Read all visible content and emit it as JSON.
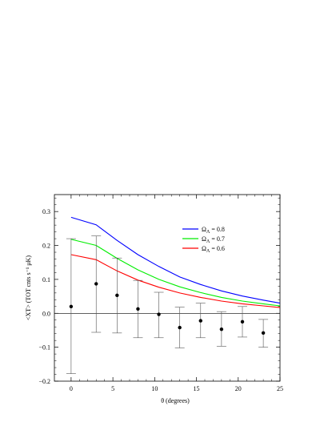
{
  "chart_data": {
    "type": "line",
    "xlabel": "θ (degrees)",
    "ylabel": "<XT> (TOT cnts s⁻¹ μK)",
    "xlim": [
      -2,
      25
    ],
    "ylim": [
      -0.2,
      0.35
    ],
    "xticks": [
      0,
      5,
      10,
      15,
      20,
      25
    ],
    "yticks": [
      -0.2,
      -0.1,
      0.0,
      0.1,
      0.2,
      0.3
    ],
    "xtick_labels": [
      "0",
      "5",
      "10",
      "15",
      "20",
      "25"
    ],
    "ytick_labels": [
      "−0.2",
      "−0.1",
      "0.0",
      "0.1",
      "0.2",
      "0.3"
    ],
    "zero_line": true,
    "legend_position": "top-right",
    "x": [
      0,
      3.0,
      5.5,
      8.0,
      10.5,
      13.0,
      15.5,
      18.0,
      20.5,
      23.0,
      25
    ],
    "series": [
      {
        "name": "Ω",
        "name_sub": "Λ",
        "name_suffix": " = 0.8",
        "color": "#0000ff",
        "values": [
          0.283,
          0.261,
          0.215,
          0.173,
          0.138,
          0.107,
          0.085,
          0.066,
          0.051,
          0.039,
          0.03
        ]
      },
      {
        "name": "Ω",
        "name_sub": "Λ",
        "name_suffix": " = 0.7",
        "color": "#00ee00",
        "values": [
          0.218,
          0.2,
          0.162,
          0.128,
          0.1,
          0.078,
          0.061,
          0.047,
          0.036,
          0.028,
          0.022
        ]
      },
      {
        "name": "Ω",
        "name_sub": "Λ",
        "name_suffix": " = 0.6",
        "color": "#ff0000",
        "values": [
          0.173,
          0.158,
          0.125,
          0.098,
          0.077,
          0.06,
          0.047,
          0.036,
          0.028,
          0.022,
          0.017
        ]
      }
    ],
    "data_points": {
      "x": [
        0.0,
        3.0,
        5.5,
        8.0,
        10.5,
        13.0,
        15.5,
        18.0,
        20.5,
        23.0
      ],
      "y": [
        0.02,
        0.087,
        0.053,
        0.013,
        -0.003,
        -0.042,
        -0.022,
        -0.047,
        -0.025,
        -0.058
      ],
      "err_low": [
        -0.178,
        -0.056,
        -0.058,
        -0.072,
        -0.072,
        -0.102,
        -0.072,
        -0.097,
        -0.07,
        -0.1
      ],
      "err_high": [
        0.22,
        0.228,
        0.163,
        0.097,
        0.062,
        0.018,
        0.03,
        0.005,
        0.02,
        -0.018
      ]
    }
  }
}
